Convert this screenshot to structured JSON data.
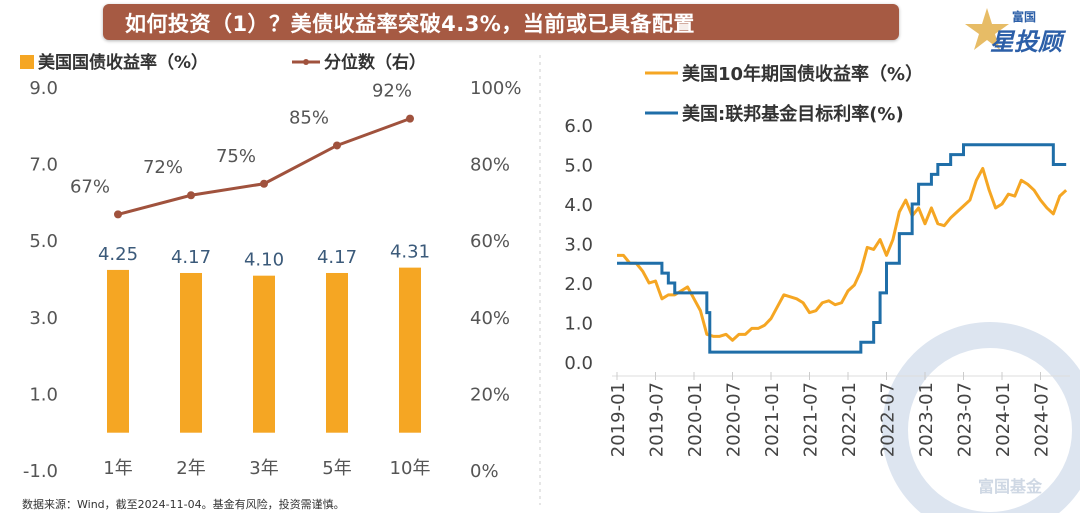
{
  "header": {
    "title": "如何投资（1）？美债收益率突破4.3%，当前或已具备配置",
    "logo_small": "富国",
    "logo_big": "星投顾",
    "brand_color": "#a65a43"
  },
  "footer": {
    "source": "数据来源：Wind，截至2024-11-04。基金有风险，投资需谨慎。"
  },
  "watermark": "富国基金",
  "chart_data": [
    {
      "type": "bar",
      "categories": [
        "1年",
        "2年",
        "3年",
        "5年",
        "10年"
      ],
      "series": [
        {
          "name": "美国国债收益率（%）",
          "type": "bar",
          "axis": "left",
          "values": [
            4.25,
            4.17,
            4.1,
            4.17,
            4.31
          ],
          "labels": [
            "4.25",
            "4.17",
            "4.10",
            "4.17",
            "4.31"
          ],
          "color": "#f5a623"
        },
        {
          "name": "分位数（右）",
          "type": "line",
          "axis": "right",
          "values": [
            67,
            72,
            75,
            85,
            92
          ],
          "labels": [
            "67%",
            "72%",
            "75%",
            "85%",
            "92%"
          ],
          "color": "#a0523d"
        }
      ],
      "ylim": [
        -1,
        9
      ],
      "yticks": [
        "9.0",
        "7.0",
        "5.0",
        "3.0",
        "1.0",
        "-1.0"
      ],
      "y2lim": [
        0,
        100
      ],
      "y2ticks": [
        "100%",
        "80%",
        "60%",
        "40%",
        "20%",
        "0%"
      ],
      "legend": "top",
      "grid": false
    },
    {
      "type": "line",
      "xticks": [
        "2019-01",
        "2019-07",
        "2020-01",
        "2020-07",
        "2021-01",
        "2021-07",
        "2022-01",
        "2022-07",
        "2023-01",
        "2023-07",
        "2024-01",
        "2024-07"
      ],
      "ylim": [
        0,
        6
      ],
      "yticks": [
        "6.0",
        "5.0",
        "4.0",
        "3.0",
        "2.0",
        "1.0",
        "0.0"
      ],
      "legend": "top",
      "grid": false,
      "x_range": [
        "2019-01",
        "2024-11"
      ],
      "series": [
        {
          "name": "美国10年期国债收益率（%）",
          "color": "#f5a623",
          "step": false,
          "x": [
            "2019-01",
            "2019-02",
            "2019-03",
            "2019-04",
            "2019-05",
            "2019-06",
            "2019-07",
            "2019-08",
            "2019-09",
            "2019-10",
            "2019-11",
            "2019-12",
            "2020-01",
            "2020-02",
            "2020-03",
            "2020-04",
            "2020-05",
            "2020-06",
            "2020-07",
            "2020-08",
            "2020-09",
            "2020-10",
            "2020-11",
            "2020-12",
            "2021-01",
            "2021-02",
            "2021-03",
            "2021-04",
            "2021-05",
            "2021-06",
            "2021-07",
            "2021-08",
            "2021-09",
            "2021-10",
            "2021-11",
            "2021-12",
            "2022-01",
            "2022-02",
            "2022-03",
            "2022-04",
            "2022-05",
            "2022-06",
            "2022-07",
            "2022-08",
            "2022-09",
            "2022-10",
            "2022-11",
            "2022-12",
            "2023-01",
            "2023-02",
            "2023-03",
            "2023-04",
            "2023-05",
            "2023-06",
            "2023-07",
            "2023-08",
            "2023-09",
            "2023-10",
            "2023-11",
            "2023-12",
            "2024-01",
            "2024-02",
            "2024-03",
            "2024-04",
            "2024-05",
            "2024-06",
            "2024-07",
            "2024-08",
            "2024-09",
            "2024-10",
            "2024-11"
          ],
          "values": [
            2.7,
            2.7,
            2.5,
            2.5,
            2.3,
            2.0,
            2.05,
            1.6,
            1.7,
            1.7,
            1.8,
            1.9,
            1.6,
            1.3,
            0.7,
            0.65,
            0.65,
            0.7,
            0.55,
            0.7,
            0.7,
            0.85,
            0.85,
            0.93,
            1.1,
            1.4,
            1.7,
            1.65,
            1.6,
            1.5,
            1.25,
            1.3,
            1.5,
            1.55,
            1.45,
            1.5,
            1.8,
            1.95,
            2.3,
            2.9,
            2.85,
            3.1,
            2.7,
            3.1,
            3.8,
            4.1,
            3.7,
            3.9,
            3.5,
            3.9,
            3.5,
            3.45,
            3.65,
            3.8,
            3.95,
            4.1,
            4.6,
            4.9,
            4.35,
            3.9,
            4.0,
            4.25,
            4.2,
            4.6,
            4.5,
            4.35,
            4.1,
            3.9,
            3.75,
            4.2,
            4.35
          ]
        },
        {
          "name": "美国:联邦基金目标利率(%)",
          "color": "#1f6ea8",
          "step": true,
          "x": [
            "2019-01",
            "2019-08",
            "2019-09",
            "2019-10",
            "2020-03",
            "2020-03-15",
            "2022-03",
            "2022-05",
            "2022-06",
            "2022-07",
            "2022-09",
            "2022-11",
            "2022-12",
            "2023-02",
            "2023-03",
            "2023-05",
            "2023-07",
            "2024-09",
            "2024-11"
          ],
          "values": [
            2.5,
            2.25,
            2.0,
            1.75,
            1.25,
            0.25,
            0.5,
            1.0,
            1.75,
            2.5,
            3.25,
            4.0,
            4.5,
            4.75,
            5.0,
            5.25,
            5.5,
            5.0,
            5.0
          ]
        }
      ]
    }
  ]
}
